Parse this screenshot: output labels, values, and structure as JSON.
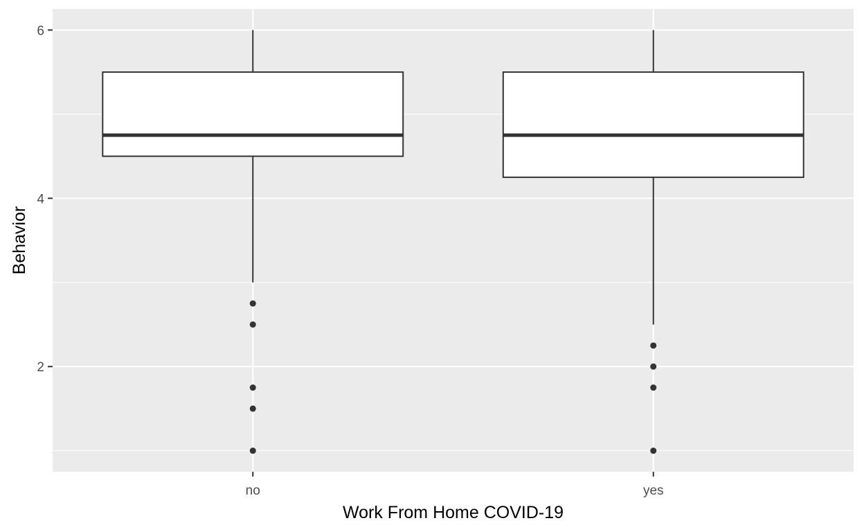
{
  "chart_data": {
    "type": "boxplot",
    "title": "",
    "xlabel": "Work From Home COVID-19",
    "ylabel": "Behavior",
    "categories": [
      "no",
      "yes"
    ],
    "ylim": [
      0.75,
      6.25
    ],
    "y_ticks": [
      2,
      4,
      6
    ],
    "y_minor_ticks": [
      1,
      3,
      5
    ],
    "grid": true,
    "legend": "none",
    "colors": {
      "panel_background": "#ebebeb",
      "grid": "#ffffff",
      "box_fill": "#ffffff",
      "box_line": "#333333",
      "outlier": "#333333",
      "tick_text": "#4d4d4d"
    },
    "boxes": [
      {
        "category": "no",
        "lower_whisker": 3.0,
        "q1": 4.5,
        "median": 4.75,
        "q3": 5.5,
        "upper_whisker": 6.0,
        "outliers": [
          2.75,
          2.5,
          1.75,
          1.5,
          1.0
        ]
      },
      {
        "category": "yes",
        "lower_whisker": 2.5,
        "q1": 4.25,
        "median": 4.75,
        "q3": 5.5,
        "upper_whisker": 6.0,
        "outliers": [
          2.25,
          2.0,
          1.75,
          1.0
        ]
      }
    ]
  }
}
